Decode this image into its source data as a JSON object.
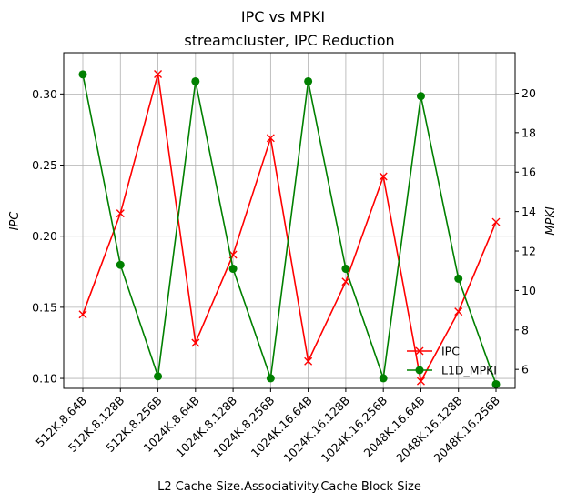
{
  "chart_data": {
    "type": "line",
    "suptitle": "IPC vs MPKI",
    "title": "streamcluster, IPC Reduction",
    "xlabel": "L2 Cache Size.Associativity.Cache Block Size",
    "ylabel_left": "IPC",
    "ylabel_right": "MPKI",
    "categories": [
      "512K.8.64B",
      "512K.8.128B",
      "512K.8.256B",
      "1024K.8.64B",
      "1024K.8.128B",
      "1024K.8.256B",
      "1024K.16.64B",
      "1024K.16.128B",
      "1024K.16.256B",
      "2048K.16.64B",
      "2048K.16.128B",
      "2048K.16.256B"
    ],
    "ylim_left": [
      0.093,
      0.329
    ],
    "yticks_left": [
      0.1,
      0.15,
      0.2,
      0.25,
      0.3
    ],
    "yticks_left_labels": [
      "0.10",
      "0.15",
      "0.20",
      "0.25",
      "0.30"
    ],
    "ylim_right": [
      5.04,
      22.05
    ],
    "yticks_right": [
      6,
      8,
      10,
      12,
      14,
      16,
      18,
      20
    ],
    "yticks_right_labels": [
      "6",
      "8",
      "10",
      "12",
      "14",
      "16",
      "18",
      "20"
    ],
    "grid": true,
    "legend_position": "lower-right",
    "series": [
      {
        "name": "IPC",
        "axis": "left",
        "color": "#ff0000",
        "marker": "x",
        "values": [
          0.145,
          0.216,
          0.314,
          0.125,
          0.187,
          0.269,
          0.112,
          0.168,
          0.242,
          0.098,
          0.147,
          0.21
        ]
      },
      {
        "name": "L1D_MPKI",
        "axis": "right",
        "color": "#008000",
        "marker": "o",
        "values": [
          20.95,
          11.3,
          5.65,
          20.6,
          11.1,
          5.55,
          20.6,
          11.1,
          5.55,
          19.85,
          10.6,
          5.25
        ]
      }
    ]
  }
}
